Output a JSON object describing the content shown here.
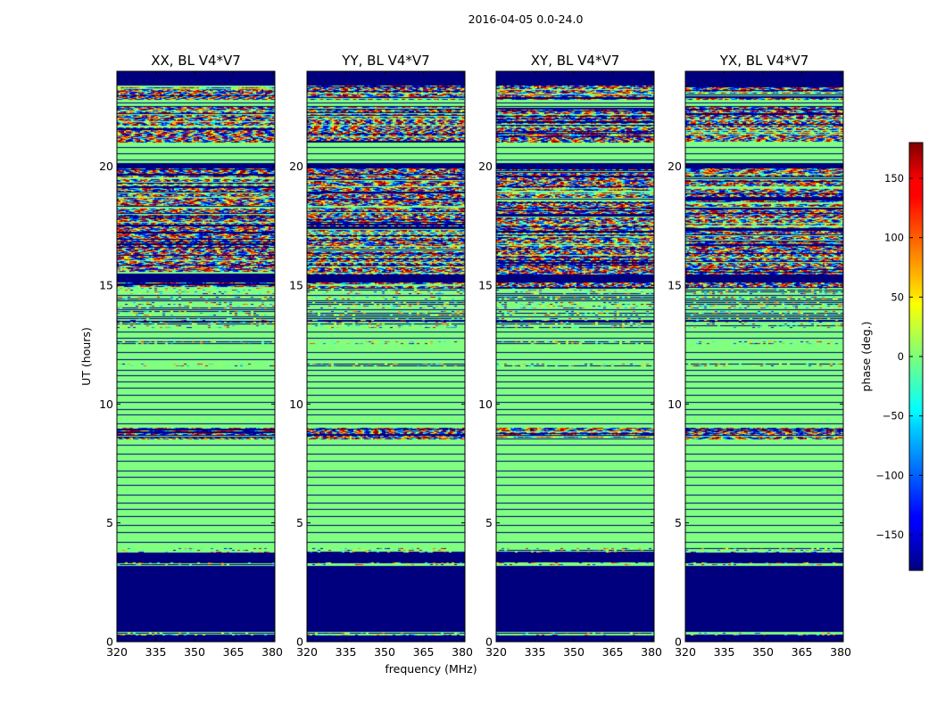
{
  "chart_data": {
    "type": "heatmap",
    "suptitle": "2016-04-05 0.0-24.0",
    "ylabel": "UT (hours)",
    "xlabel": "frequency (MHz)",
    "xlim": [
      320,
      381
    ],
    "ylim": [
      0,
      24
    ],
    "xticks": [
      320,
      335,
      350,
      365,
      380
    ],
    "yticks": [
      0,
      5,
      10,
      15,
      20
    ],
    "colorbar": {
      "label": "phase (deg.)",
      "range": [
        -180,
        180
      ],
      "ticks": [
        -150,
        -100,
        -50,
        0,
        50,
        100,
        150
      ],
      "ticks_text": [
        "−150",
        "−100",
        "−50",
        "0",
        "50",
        "100",
        "150"
      ],
      "colormap": "jet"
    },
    "panels": [
      {
        "title": "XX, BL V4*V7",
        "seed": 11
      },
      {
        "title": "YY, BL V4*V7",
        "seed": 23
      },
      {
        "title": "XY, BL V4*V7",
        "seed": 37
      },
      {
        "title": "YX, BL V4*V7",
        "seed": 53
      }
    ],
    "segments": [
      {
        "from": 0.0,
        "to": 0.25,
        "pattern": "dark"
      },
      {
        "from": 0.25,
        "to": 0.45,
        "pattern": "sparse"
      },
      {
        "from": 0.45,
        "to": 3.2,
        "pattern": "dark"
      },
      {
        "from": 3.2,
        "to": 3.35,
        "pattern": "sparse"
      },
      {
        "from": 3.35,
        "to": 3.75,
        "pattern": "dark"
      },
      {
        "from": 3.75,
        "to": 3.95,
        "pattern": "sparse"
      },
      {
        "from": 3.95,
        "to": 8.5,
        "pattern": "flat"
      },
      {
        "from": 8.5,
        "to": 9.0,
        "pattern": "noise"
      },
      {
        "from": 9.0,
        "to": 11.6,
        "pattern": "flat"
      },
      {
        "from": 11.6,
        "to": 11.7,
        "pattern": "sparse"
      },
      {
        "from": 11.7,
        "to": 12.5,
        "pattern": "flat"
      },
      {
        "from": 12.5,
        "to": 12.65,
        "pattern": "sparse"
      },
      {
        "from": 12.65,
        "to": 13.2,
        "pattern": "flat"
      },
      {
        "from": 13.2,
        "to": 14.9,
        "pattern": "sparse"
      },
      {
        "from": 14.9,
        "to": 15.1,
        "pattern": "noise"
      },
      {
        "from": 15.1,
        "to": 15.45,
        "pattern": "dark"
      },
      {
        "from": 15.45,
        "to": 19.9,
        "pattern": "noise"
      },
      {
        "from": 19.9,
        "to": 20.15,
        "pattern": "dark"
      },
      {
        "from": 20.15,
        "to": 21.0,
        "pattern": "flat"
      },
      {
        "from": 21.0,
        "to": 22.5,
        "pattern": "noise"
      },
      {
        "from": 22.5,
        "to": 22.8,
        "pattern": "flat"
      },
      {
        "from": 22.8,
        "to": 23.4,
        "pattern": "noise"
      },
      {
        "from": 23.4,
        "to": 24.0,
        "pattern": "dark"
      }
    ],
    "hlines": [
      0.45,
      0.9,
      1.3,
      1.6,
      2.1,
      2.6,
      3.05,
      4.2,
      4.6,
      4.9,
      5.3,
      5.6,
      5.85,
      6.2,
      6.6,
      6.95,
      7.2,
      7.6,
      7.9,
      8.3,
      8.7,
      9.2,
      9.55,
      9.8,
      10.1,
      10.4,
      10.7,
      10.95,
      11.2,
      11.45,
      11.9,
      12.2,
      12.8,
      13.05,
      13.5,
      13.7,
      14.0,
      14.35,
      14.6,
      20.3,
      20.55,
      20.8,
      22.55,
      22.7,
      23.45,
      23.65,
      23.85
    ]
  }
}
